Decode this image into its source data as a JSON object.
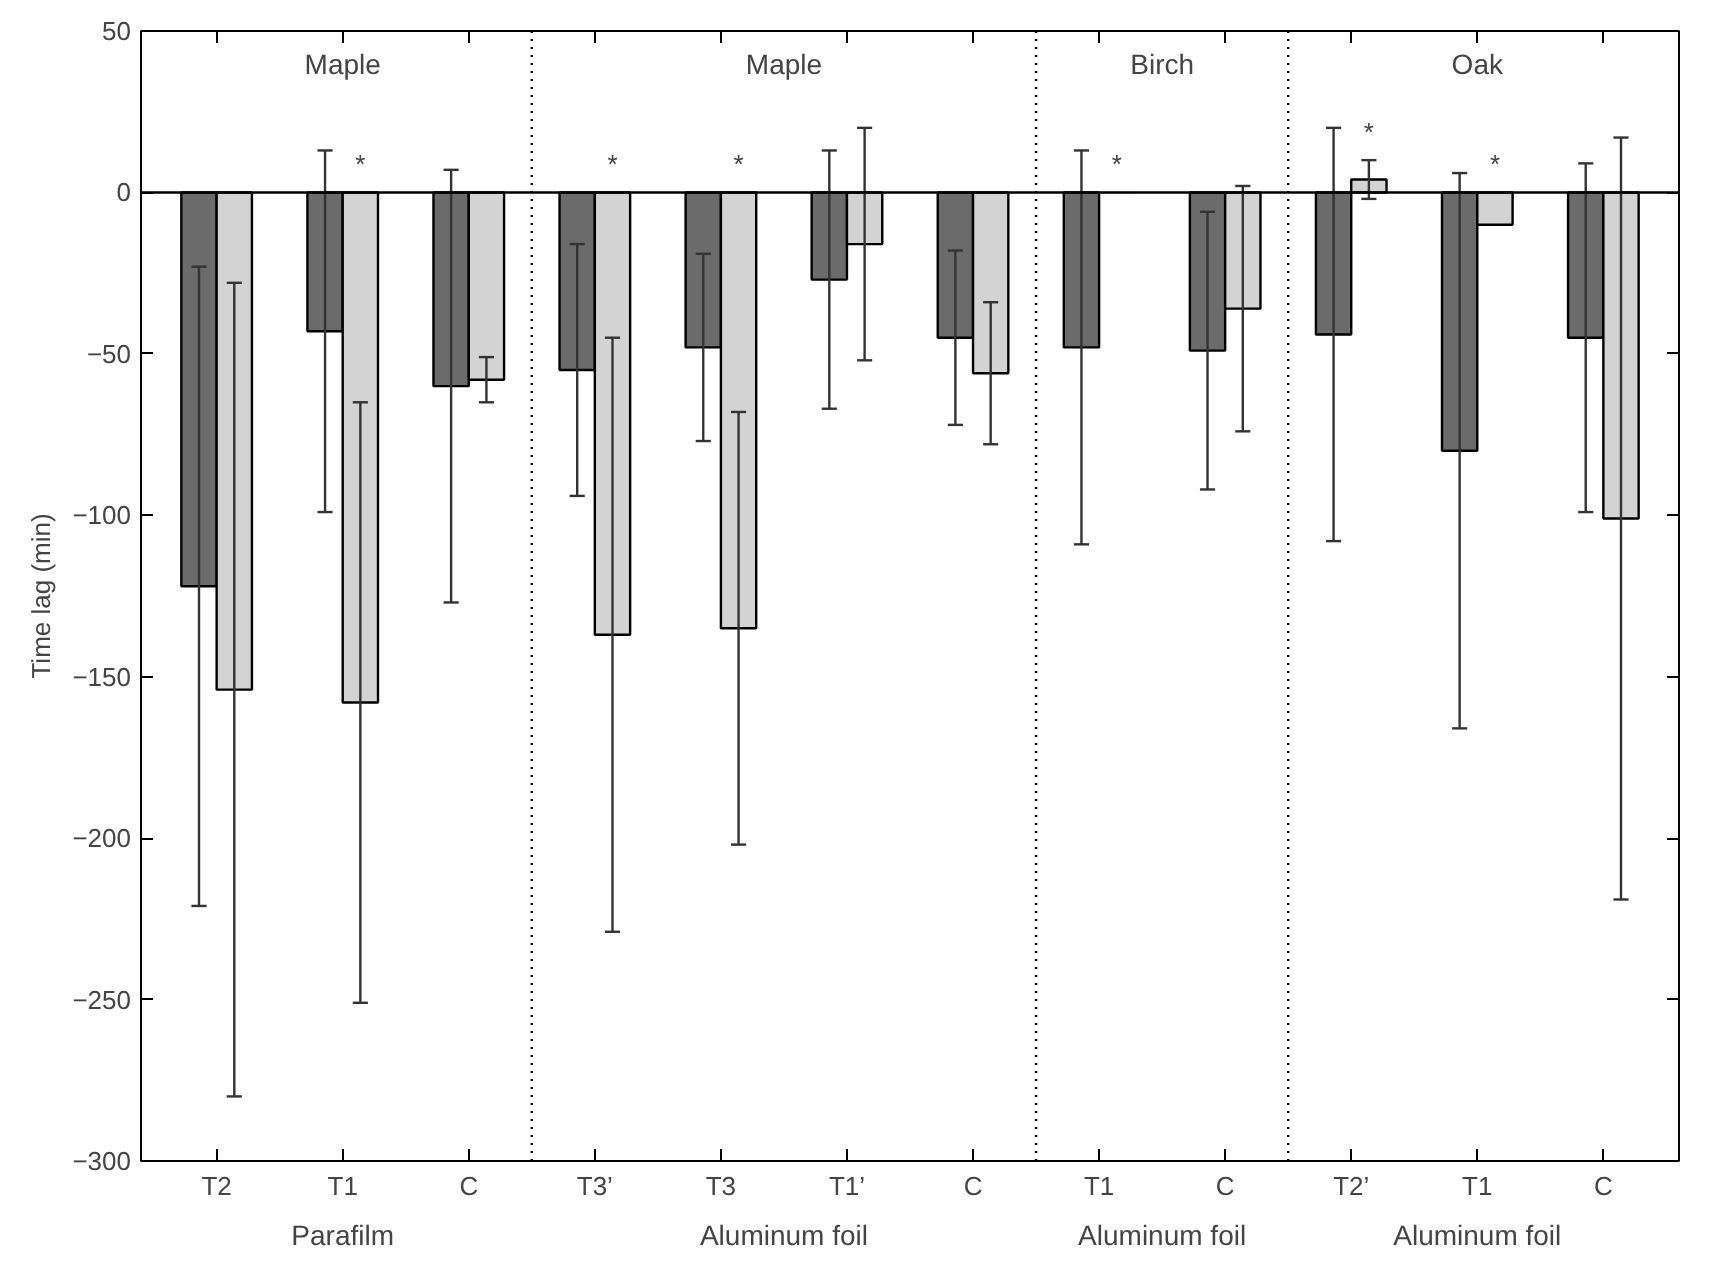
{
  "chart_data": {
    "type": "bar",
    "ylabel": "Time lag (min)",
    "categories": [
      "T2",
      "T1",
      "C",
      "T3’",
      "T3",
      "T1’",
      "C",
      "T1",
      "C",
      "T2’",
      "T1",
      "C"
    ],
    "series": [
      {
        "color": "#6b6b6b",
        "values": [
          -122,
          -43,
          -60,
          -55,
          -48,
          -27,
          -45,
          -48,
          -49,
          -44,
          -80,
          -45
        ],
        "errors": [
          99,
          56,
          67,
          39,
          29,
          40,
          27,
          61,
          43,
          64,
          86,
          54
        ]
      },
      {
        "color": "#d3d3d3",
        "values": [
          -154,
          -158,
          -58,
          -137,
          -135,
          -16,
          -56,
          0,
          -36,
          4,
          -10,
          -101
        ],
        "errors": [
          126,
          93,
          7,
          92,
          67,
          36,
          22,
          null,
          38,
          6,
          null,
          118
        ],
        "value_labels": [
          null,
          "*",
          null,
          "*",
          "*",
          null,
          null,
          "*",
          null,
          "*",
          "*",
          null
        ]
      }
    ],
    "ylim": [
      -300,
      50
    ],
    "yticks": [
      {
        "value": -300,
        "label": "−300"
      },
      {
        "value": -250,
        "label": "−250"
      },
      {
        "value": -200,
        "label": "−200"
      },
      {
        "value": -150,
        "label": "−150"
      },
      {
        "value": -100,
        "label": "−100"
      },
      {
        "value": -50,
        "label": "−50"
      },
      0,
      50
    ],
    "ref_lines": [
      {
        "axis": "y",
        "value": 0,
        "line_style": "solid",
        "color": "#000000"
      }
    ],
    "annotations": [
      "Maple",
      "Maple",
      "Birch",
      "Oak",
      "Parafilm",
      "Aluminum foil",
      "Aluminum foil",
      "Aluminum foil"
    ],
    "grid": false
  }
}
